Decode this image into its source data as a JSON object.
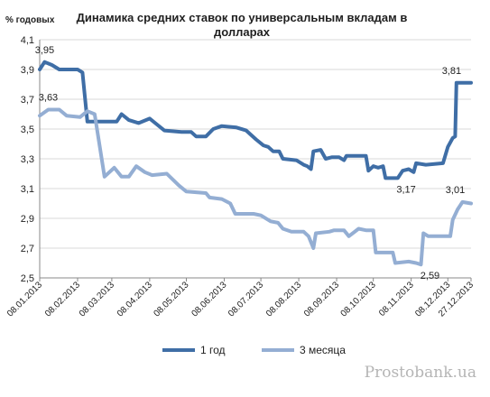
{
  "chart_data": {
    "type": "line",
    "title_lines": [
      "Динамика средних ставок по универсальным вкладам в",
      "долларах"
    ],
    "ylabel": "% годовых",
    "ylim": [
      2.5,
      4.1
    ],
    "yticks": [
      "2,5",
      "2,7",
      "2,9",
      "3,1",
      "3,3",
      "3,5",
      "3,7",
      "3,9",
      "4,1"
    ],
    "xlim": [
      "2013-01-08",
      "2013-12-27"
    ],
    "xtick_labels": [
      "08.01.2013",
      "08.02.2013",
      "08.03.2013",
      "08.04.2013",
      "08.05.2013",
      "08.06.2013",
      "08.07.2013",
      "08.08.2013",
      "08.09.2013",
      "08.10.2013",
      "08.11.2013",
      "08.12.2013",
      "27.12.2013"
    ],
    "xtick_dates": [
      "2013-01-08",
      "2013-02-08",
      "2013-03-08",
      "2013-04-08",
      "2013-05-08",
      "2013-06-08",
      "2013-07-08",
      "2013-08-08",
      "2013-09-08",
      "2013-10-08",
      "2013-11-08",
      "2013-12-08",
      "2013-12-27"
    ],
    "grid": true,
    "legend_position": "bottom",
    "series": [
      {
        "name": "1 год",
        "color": "#3f6ea6",
        "points": [
          [
            "2013-01-08",
            3.9
          ],
          [
            "2013-01-12",
            3.95
          ],
          [
            "2013-01-18",
            3.93
          ],
          [
            "2013-01-24",
            3.9
          ],
          [
            "2013-02-08",
            3.9
          ],
          [
            "2013-02-12",
            3.88
          ],
          [
            "2013-02-16",
            3.55
          ],
          [
            "2013-02-28",
            3.55
          ],
          [
            "2013-03-12",
            3.55
          ],
          [
            "2013-03-16",
            3.6
          ],
          [
            "2013-03-22",
            3.56
          ],
          [
            "2013-03-30",
            3.54
          ],
          [
            "2013-04-08",
            3.57
          ],
          [
            "2013-04-14",
            3.53
          ],
          [
            "2013-04-20",
            3.49
          ],
          [
            "2013-05-04",
            3.48
          ],
          [
            "2013-05-12",
            3.48
          ],
          [
            "2013-05-16",
            3.45
          ],
          [
            "2013-05-24",
            3.45
          ],
          [
            "2013-05-30",
            3.5
          ],
          [
            "2013-06-06",
            3.52
          ],
          [
            "2013-06-18",
            3.51
          ],
          [
            "2013-06-26",
            3.49
          ],
          [
            "2013-07-04",
            3.43
          ],
          [
            "2013-07-10",
            3.39
          ],
          [
            "2013-07-14",
            3.38
          ],
          [
            "2013-07-18",
            3.35
          ],
          [
            "2013-07-23",
            3.35
          ],
          [
            "2013-07-26",
            3.3
          ],
          [
            "2013-08-06",
            3.29
          ],
          [
            "2013-08-12",
            3.26
          ],
          [
            "2013-08-15",
            3.25
          ],
          [
            "2013-08-18",
            3.23
          ],
          [
            "2013-08-20",
            3.35
          ],
          [
            "2013-08-26",
            3.36
          ],
          [
            "2013-08-30",
            3.3
          ],
          [
            "2013-09-04",
            3.31
          ],
          [
            "2013-09-10",
            3.31
          ],
          [
            "2013-09-14",
            3.29
          ],
          [
            "2013-09-16",
            3.32
          ],
          [
            "2013-10-02",
            3.32
          ],
          [
            "2013-10-04",
            3.22
          ],
          [
            "2013-10-08",
            3.25
          ],
          [
            "2013-10-12",
            3.24
          ],
          [
            "2013-10-16",
            3.25
          ],
          [
            "2013-10-18",
            3.17
          ],
          [
            "2013-10-28",
            3.17
          ],
          [
            "2013-11-01",
            3.22
          ],
          [
            "2013-11-06",
            3.23
          ],
          [
            "2013-11-10",
            3.21
          ],
          [
            "2013-11-12",
            3.27
          ],
          [
            "2013-11-20",
            3.26
          ],
          [
            "2013-12-04",
            3.27
          ],
          [
            "2013-12-08",
            3.38
          ],
          [
            "2013-12-12",
            3.44
          ],
          [
            "2013-12-14",
            3.45
          ],
          [
            "2013-12-15",
            3.81
          ],
          [
            "2013-12-27",
            3.81
          ]
        ],
        "annotations": [
          {
            "date": "2013-01-12",
            "value": 3.95,
            "text": "3,95"
          },
          {
            "date": "2013-10-26",
            "value": 3.17,
            "text": "3,17"
          },
          {
            "date": "2013-12-17",
            "value": 3.81,
            "text": "3,81"
          }
        ]
      },
      {
        "name": "3 месяца",
        "color": "#94aed3",
        "points": [
          [
            "2013-01-08",
            3.59
          ],
          [
            "2013-01-15",
            3.63
          ],
          [
            "2013-01-24",
            3.63
          ],
          [
            "2013-01-30",
            3.59
          ],
          [
            "2013-02-10",
            3.58
          ],
          [
            "2013-02-16",
            3.62
          ],
          [
            "2013-02-22",
            3.6
          ],
          [
            "2013-03-02",
            3.18
          ],
          [
            "2013-03-10",
            3.24
          ],
          [
            "2013-03-16",
            3.18
          ],
          [
            "2013-03-22",
            3.18
          ],
          [
            "2013-03-28",
            3.25
          ],
          [
            "2013-04-04",
            3.21
          ],
          [
            "2013-04-10",
            3.19
          ],
          [
            "2013-04-22",
            3.2
          ],
          [
            "2013-05-02",
            3.12
          ],
          [
            "2013-05-08",
            3.08
          ],
          [
            "2013-05-24",
            3.07
          ],
          [
            "2013-05-27",
            3.04
          ],
          [
            "2013-06-06",
            3.03
          ],
          [
            "2013-06-13",
            3.0
          ],
          [
            "2013-06-17",
            2.93
          ],
          [
            "2013-07-02",
            2.93
          ],
          [
            "2013-07-08",
            2.92
          ],
          [
            "2013-07-16",
            2.88
          ],
          [
            "2013-07-22",
            2.87
          ],
          [
            "2013-07-26",
            2.83
          ],
          [
            "2013-08-02",
            2.81
          ],
          [
            "2013-08-12",
            2.81
          ],
          [
            "2013-08-16",
            2.78
          ],
          [
            "2013-08-20",
            2.7
          ],
          [
            "2013-08-22",
            2.8
          ],
          [
            "2013-09-02",
            2.81
          ],
          [
            "2013-09-06",
            2.82
          ],
          [
            "2013-09-14",
            2.82
          ],
          [
            "2013-09-18",
            2.78
          ],
          [
            "2013-09-26",
            2.83
          ],
          [
            "2013-10-02",
            2.82
          ],
          [
            "2013-10-08",
            2.82
          ],
          [
            "2013-10-10",
            2.67
          ],
          [
            "2013-10-24",
            2.67
          ],
          [
            "2013-10-26",
            2.6
          ],
          [
            "2013-11-06",
            2.61
          ],
          [
            "2013-11-12",
            2.6
          ],
          [
            "2013-11-16",
            2.59
          ],
          [
            "2013-11-18",
            2.8
          ],
          [
            "2013-11-22",
            2.78
          ],
          [
            "2013-12-10",
            2.78
          ],
          [
            "2013-12-12",
            2.89
          ],
          [
            "2013-12-16",
            2.96
          ],
          [
            "2013-12-20",
            3.01
          ],
          [
            "2013-12-27",
            3.0
          ]
        ],
        "annotations": [
          {
            "date": "2013-01-15",
            "value": 3.63,
            "text": "3,63"
          },
          {
            "date": "2013-11-16",
            "value": 2.59,
            "text": "2,59"
          },
          {
            "date": "2013-12-20",
            "value": 3.01,
            "text": "3,01"
          }
        ]
      }
    ]
  },
  "watermark": "Prostobank.ua"
}
